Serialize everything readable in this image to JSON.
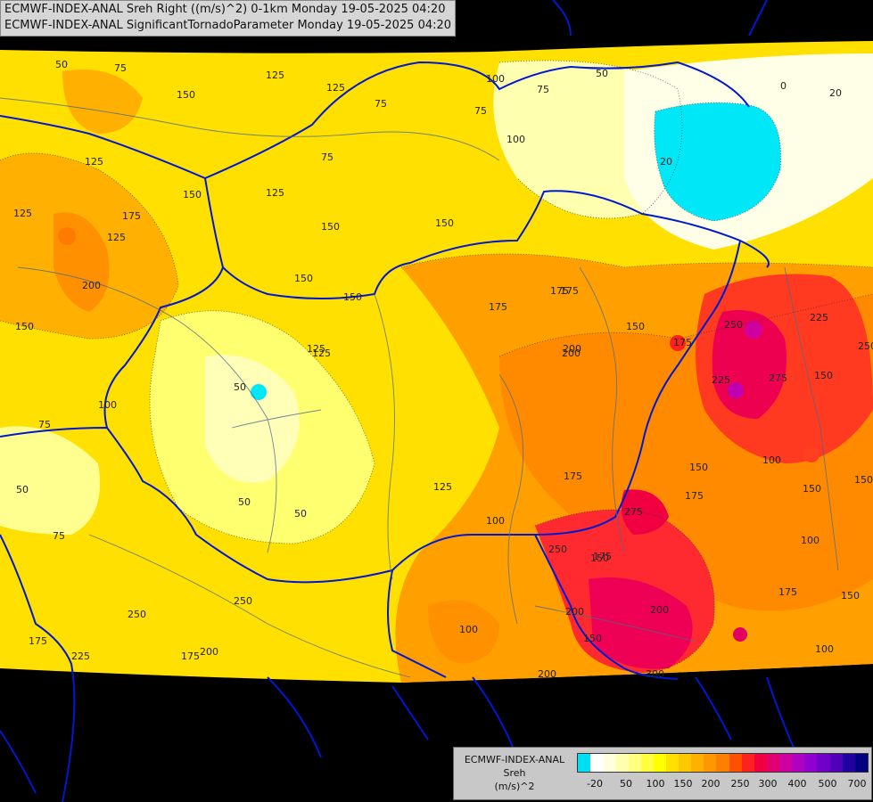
{
  "header": {
    "line1": "ECMWF-INDEX-ANAL Sreh Right ((m/s)^2) 0-1km Monday 19-05-2025 04:20",
    "line2": "ECMWF-INDEX-ANAL SignificantTornadoParameter Monday 19-05-2025 04:20"
  },
  "legend": {
    "title_line1": "ECMWF-INDEX-ANAL",
    "title_line2": "Sreh",
    "title_line3": "(m/s)^2",
    "tick_labels": [
      "-20",
      "50",
      "100",
      "150",
      "200",
      "250",
      "300",
      "400",
      "500",
      "700"
    ],
    "colors": [
      "#00e0f0",
      "#ffffff",
      "#ffffe0",
      "#ffffb0",
      "#ffff80",
      "#ffff40",
      "#ffff00",
      "#ffe000",
      "#ffc800",
      "#ffb000",
      "#ff9800",
      "#ff8000",
      "#ff5000",
      "#ff2020",
      "#f00040",
      "#e00070",
      "#d000a0",
      "#b000c0",
      "#9000d0",
      "#7000c8",
      "#5000b8",
      "#2000a0",
      "#000080"
    ]
  },
  "contour_labels": [
    "50",
    "75",
    "125",
    "150",
    "125",
    "100",
    "75",
    "100",
    "75",
    "50",
    "0",
    "20",
    "125",
    "150",
    "75",
    "125",
    "75",
    "20",
    "125",
    "175",
    "125",
    "150",
    "150",
    "200",
    "150",
    "150",
    "175",
    "175",
    "125",
    "225",
    "250",
    "150",
    "125",
    "50",
    "175",
    "200",
    "150",
    "175",
    "225",
    "275",
    "150",
    "100",
    "75",
    "250",
    "200",
    "100",
    "150",
    "50",
    "50",
    "50",
    "125",
    "175",
    "150",
    "175",
    "150",
    "75",
    "100",
    "275",
    "250",
    "100",
    "150",
    "250",
    "250",
    "175",
    "175",
    "150",
    "175",
    "225",
    "200",
    "200",
    "100",
    "100",
    "200",
    "175",
    "150",
    "200",
    "300"
  ]
}
